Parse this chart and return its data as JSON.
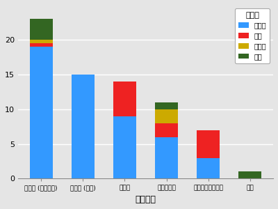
{
  "categories": [
    "儒教圈 (中国以外)",
    "儒教圈 (中国)",
    "ラテン",
    "東南アジア",
    "アングロサクソン",
    "不明"
  ],
  "japanese": [
    19,
    15,
    9,
    6,
    3,
    0
  ],
  "english": [
    0.5,
    0,
    5,
    2,
    4,
    0
  ],
  "other": [
    0.5,
    0,
    0,
    2,
    0,
    0
  ],
  "unknown": [
    3,
    0,
    0,
    1,
    0,
    1
  ],
  "colors": {
    "japanese": "#3399ff",
    "english": "#ee2222",
    "other": "#ccaa00",
    "unknown": "#336622"
  },
  "legend_labels": [
    "日本語",
    "英語",
    "その他",
    "不明"
  ],
  "legend_title": "主言語",
  "xlabel": "文化分類",
  "ylim": [
    0,
    25
  ],
  "yticks": [
    0,
    5,
    10,
    15,
    20
  ],
  "bg_color": "#e5e5e5",
  "bar_width": 0.55
}
